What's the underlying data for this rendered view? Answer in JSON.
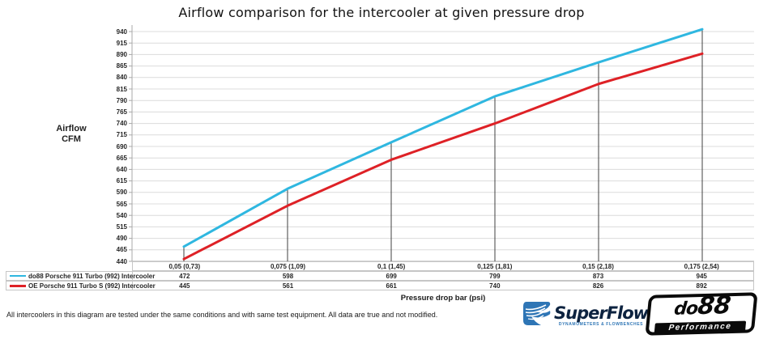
{
  "chart_data": {
    "type": "line",
    "title": "Airflow comparison for the intercooler at given pressure drop",
    "ylabel": "Airflow CFM",
    "ylabel_lines": [
      "Airflow",
      "CFM"
    ],
    "xlabel": "Pressure drop bar (psi)",
    "categories": [
      "0,05 (0,73)",
      "0,075 (1,09)",
      "0,1 (1,45)",
      "0,125 (1,81)",
      "0,15 (2,18)",
      "0,175 (2,54)"
    ],
    "series": [
      {
        "name": "do88 Porsche 911 Turbo (992) Intercooler",
        "color": "#2fb7e0",
        "swatch_thickness": 2,
        "values": [
          472,
          598,
          699,
          799,
          873,
          945
        ]
      },
      {
        "name": "OE Porsche 911 Turbo S (992) Intercooler",
        "color": "#de2126",
        "swatch_thickness": 3,
        "values": [
          445,
          561,
          661,
          740,
          826,
          892
        ]
      }
    ],
    "y_axis": {
      "min": 440,
      "max": 940,
      "step": 25
    },
    "grid": true,
    "legend_position": "table-left",
    "colors": {
      "gridline": "#dcdcdc",
      "axis": "#a8a8a8",
      "dropline": "#404040",
      "table_border": "#c6c6c6"
    }
  },
  "footer": {
    "note": "All intercoolers in this diagram are tested under the same conditions and with same test equipment. All data are true and not modified."
  },
  "logos": {
    "superflow": {
      "name": "SuperFlow",
      "subtitle": "DYNAMOMETERS & FLOWBENCHES",
      "text_color": "#0d2340",
      "icon_color": "#2e75b5"
    },
    "do88": {
      "name_prefix": "do",
      "name_suffix": "88",
      "subtitle": "Performance"
    }
  }
}
